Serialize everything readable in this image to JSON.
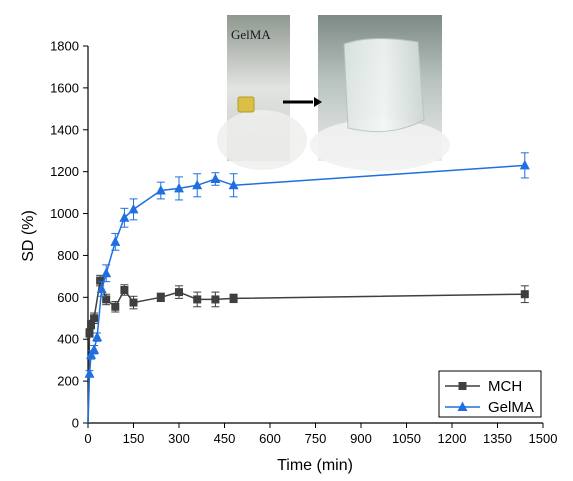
{
  "chart_data": {
    "type": "line",
    "xlabel": "Time (min)",
    "ylabel": "SD (%)",
    "xlim": [
      0,
      1500
    ],
    "ylim": [
      0,
      1800
    ],
    "xticks": [
      0,
      150,
      300,
      450,
      600,
      750,
      900,
      1050,
      1200,
      1350,
      1500
    ],
    "yticks": [
      0,
      200,
      400,
      600,
      800,
      1000,
      1200,
      1400,
      1600,
      1800
    ],
    "grid": false,
    "legend_position": "bottom-right",
    "series": [
      {
        "name": "MCH",
        "marker": "square",
        "color": "#3f3f3f",
        "points": [
          {
            "x": 0,
            "y": 0,
            "err": 0
          },
          {
            "x": 5,
            "y": 430,
            "err": 20
          },
          {
            "x": 10,
            "y": 470,
            "err": 20
          },
          {
            "x": 20,
            "y": 500,
            "err": 25
          },
          {
            "x": 40,
            "y": 680,
            "err": 25
          },
          {
            "x": 60,
            "y": 590,
            "err": 25
          },
          {
            "x": 90,
            "y": 555,
            "err": 25
          },
          {
            "x": 120,
            "y": 635,
            "err": 25
          },
          {
            "x": 150,
            "y": 575,
            "err": 30
          },
          {
            "x": 240,
            "y": 600,
            "err": 20
          },
          {
            "x": 300,
            "y": 625,
            "err": 30
          },
          {
            "x": 360,
            "y": 590,
            "err": 35
          },
          {
            "x": 420,
            "y": 590,
            "err": 35
          },
          {
            "x": 480,
            "y": 595,
            "err": 20
          },
          {
            "x": 1440,
            "y": 615,
            "err": 40
          }
        ]
      },
      {
        "name": "GelMA",
        "marker": "triangle",
        "color": "#1f6fe0",
        "points": [
          {
            "x": 0,
            "y": 0,
            "err": 0
          },
          {
            "x": 5,
            "y": 235,
            "err": 15
          },
          {
            "x": 10,
            "y": 325,
            "err": 20
          },
          {
            "x": 20,
            "y": 350,
            "err": 20
          },
          {
            "x": 30,
            "y": 410,
            "err": 20
          },
          {
            "x": 45,
            "y": 640,
            "err": 35
          },
          {
            "x": 60,
            "y": 715,
            "err": 40
          },
          {
            "x": 90,
            "y": 865,
            "err": 40
          },
          {
            "x": 120,
            "y": 980,
            "err": 45
          },
          {
            "x": 150,
            "y": 1020,
            "err": 50
          },
          {
            "x": 240,
            "y": 1110,
            "err": 40
          },
          {
            "x": 300,
            "y": 1120,
            "err": 55
          },
          {
            "x": 360,
            "y": 1135,
            "err": 55
          },
          {
            "x": 420,
            "y": 1165,
            "err": 30
          },
          {
            "x": 480,
            "y": 1135,
            "err": 55
          },
          {
            "x": 1440,
            "y": 1230,
            "err": 60
          }
        ]
      }
    ],
    "inset": {
      "label": "GelMA",
      "arrow_icon": "right-arrow-icon"
    }
  }
}
